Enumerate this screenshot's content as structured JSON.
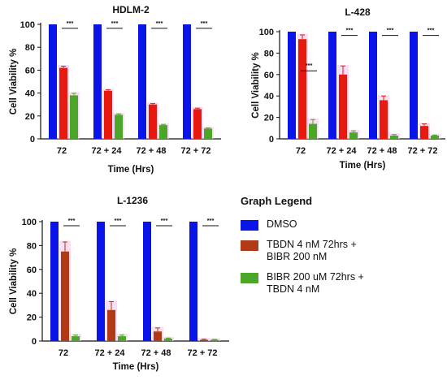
{
  "legend": {
    "title": "Graph Legend",
    "items": [
      {
        "label": "DMSO",
        "color": "#0a14e8"
      },
      {
        "label": "TBDN 4 nM 72hrs +\nBIBR 200 nM",
        "color": "#b03a15"
      },
      {
        "label": "BIBR 200 uM 72hrs +\nTBDN 4 nM",
        "color": "#4ca62a"
      }
    ]
  },
  "colors": {
    "dmso": "#0a14e8",
    "tbdn_bibr": "#e81a10",
    "tbdn_bibr_alt": "#b03a15",
    "bibr_tbdn": "#4ca62a",
    "error_glow": "#f7c8ef"
  },
  "chart_data": [
    {
      "type": "bar",
      "title": "HDLM-2",
      "xlabel": "Time (Hrs)",
      "ylabel": "Cell Viability %",
      "categories": [
        "72",
        "72 + 24",
        "72 + 48",
        "72 + 72"
      ],
      "ylim": [
        0,
        100
      ],
      "yticks": [
        0,
        20,
        40,
        60,
        80,
        100
      ],
      "series": [
        {
          "name": "DMSO",
          "values": [
            100,
            100,
            100,
            100
          ],
          "errors": [
            0,
            0,
            0,
            0
          ]
        },
        {
          "name": "TBDN 4 nM 72hrs +\nBIBR 200 nM",
          "values": [
            62,
            42,
            30,
            26
          ],
          "errors": [
            1.5,
            0.8,
            0.8,
            0.8
          ]
        },
        {
          "name": "BIBR 200 uM 72hrs +\nTBDN 4 nM",
          "values": [
            38,
            21,
            12,
            9
          ],
          "errors": [
            1.8,
            0.8,
            0.6,
            0.5
          ]
        }
      ],
      "annotations": [
        "***",
        "***",
        "***",
        "***"
      ],
      "bar_color_series2": "#e81a10"
    },
    {
      "type": "bar",
      "title": "L-428",
      "xlabel": "Time (Hrs)",
      "ylabel": "Cell Viability %",
      "categories": [
        "72",
        "72 + 24",
        "72 + 48",
        "72 + 72"
      ],
      "ylim": [
        0,
        100
      ],
      "yticks": [
        0,
        20,
        40,
        60,
        80,
        100
      ],
      "series": [
        {
          "name": "DMSO",
          "values": [
            100,
            100,
            100,
            100
          ],
          "errors": [
            0,
            0,
            0,
            0
          ]
        },
        {
          "name": "TBDN 4 nM 72hrs +\nBIBR 200 nM",
          "values": [
            93,
            60,
            36,
            12
          ],
          "errors": [
            4,
            8,
            4,
            2
          ]
        },
        {
          "name": "BIBR 200 uM 72hrs +\nTBDN 4 nM",
          "values": [
            14,
            6,
            3,
            3
          ],
          "errors": [
            4,
            1.5,
            1,
            0.5
          ]
        }
      ],
      "annotations": [
        "***",
        "***",
        "***",
        "***"
      ],
      "bar_color_series2": "#e81a10"
    },
    {
      "type": "bar",
      "title": "L-1236",
      "xlabel": "Time (Hrs)",
      "ylabel": "Cell Viability %",
      "categories": [
        "72",
        "72 + 24",
        "72 + 48",
        "72 + 72"
      ],
      "ylim": [
        0,
        100
      ],
      "yticks": [
        0,
        20,
        40,
        60,
        80,
        100
      ],
      "series": [
        {
          "name": "DMSO",
          "values": [
            100,
            100,
            100,
            100
          ],
          "errors": [
            0,
            0,
            0,
            0
          ]
        },
        {
          "name": "TBDN 4 nM 72hrs +\nBIBR 200 nM",
          "values": [
            75,
            26,
            8,
            1
          ],
          "errors": [
            8,
            7,
            3,
            0.5
          ]
        },
        {
          "name": "BIBR 200 uM 72hrs +\nTBDN 4 nM",
          "values": [
            4,
            4,
            2,
            1
          ],
          "errors": [
            1,
            1,
            0.5,
            0.3
          ]
        }
      ],
      "annotations": [
        "***",
        "***",
        "***",
        "***"
      ],
      "bar_color_series2": "#b03a15"
    }
  ]
}
